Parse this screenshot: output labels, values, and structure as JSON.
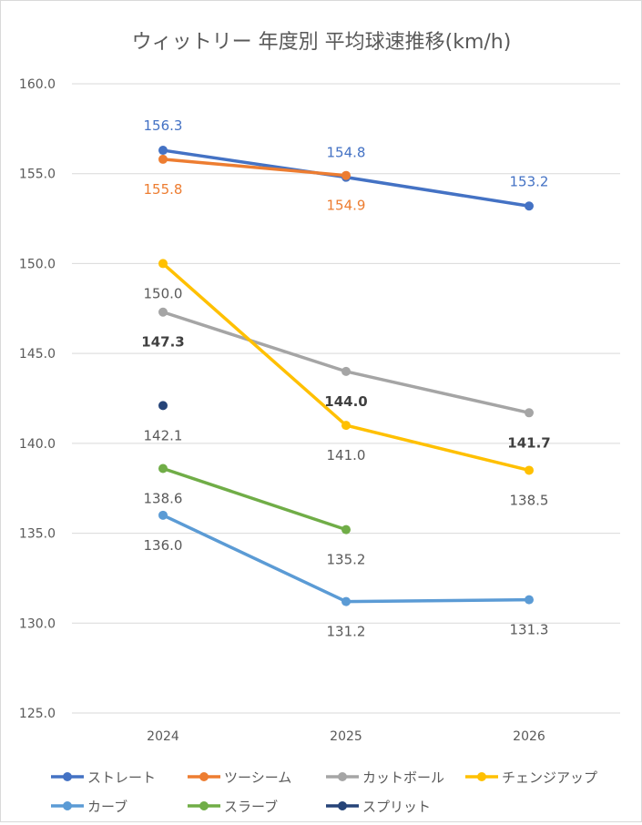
{
  "chart_data": {
    "type": "line",
    "title": "ウィットリー 年度別 平均球速推移(km/h)",
    "xlabel": "",
    "ylabel": "",
    "categories": [
      "2024",
      "2025",
      "2026"
    ],
    "ylim": [
      125,
      160
    ],
    "yticks": [
      "125.0",
      "130.0",
      "135.0",
      "140.0",
      "145.0",
      "150.0",
      "155.0",
      "160.0"
    ],
    "grid": true,
    "legend_position": "bottom",
    "series": [
      {
        "name": "ストレート",
        "color": "#4472C4",
        "label_color": "#4472C4",
        "label_bold": false,
        "label_pos": "above",
        "values": [
          156.3,
          154.8,
          153.2
        ],
        "labels": [
          "156.3",
          "154.8",
          "153.2"
        ]
      },
      {
        "name": "ツーシーム",
        "color": "#ED7D31",
        "label_color": "#ED7D31",
        "label_bold": false,
        "label_pos": "below",
        "values": [
          155.8,
          154.9,
          null
        ],
        "labels": [
          "155.8",
          "154.9",
          ""
        ]
      },
      {
        "name": "カットボール",
        "color": "#A5A5A5",
        "label_color": "#404040",
        "label_bold": true,
        "label_pos": "below",
        "values": [
          147.3,
          144.0,
          141.7
        ],
        "labels": [
          "147.3",
          "144.0",
          "141.7"
        ]
      },
      {
        "name": "チェンジアップ",
        "color": "#FFC000",
        "label_color": "#595959",
        "label_bold": false,
        "label_pos": "below",
        "values": [
          150.0,
          141.0,
          138.5
        ],
        "labels": [
          "150.0",
          "141.0",
          "138.5"
        ]
      },
      {
        "name": "カーブ",
        "color": "#5B9BD5",
        "label_color": "#595959",
        "label_bold": false,
        "label_pos": "below",
        "values": [
          136.0,
          131.2,
          131.3
        ],
        "labels": [
          "136.0",
          "131.2",
          "131.3"
        ]
      },
      {
        "name": "スラーブ",
        "color": "#70AD47",
        "label_color": "#595959",
        "label_bold": false,
        "label_pos": "below",
        "values": [
          138.6,
          135.2,
          null
        ],
        "labels": [
          "138.6",
          "135.2",
          ""
        ]
      },
      {
        "name": "スプリット",
        "color": "#264478",
        "label_color": "#595959",
        "label_bold": false,
        "label_pos": "below",
        "values": [
          142.1,
          null,
          null
        ],
        "labels": [
          "142.1",
          "",
          ""
        ]
      }
    ]
  }
}
